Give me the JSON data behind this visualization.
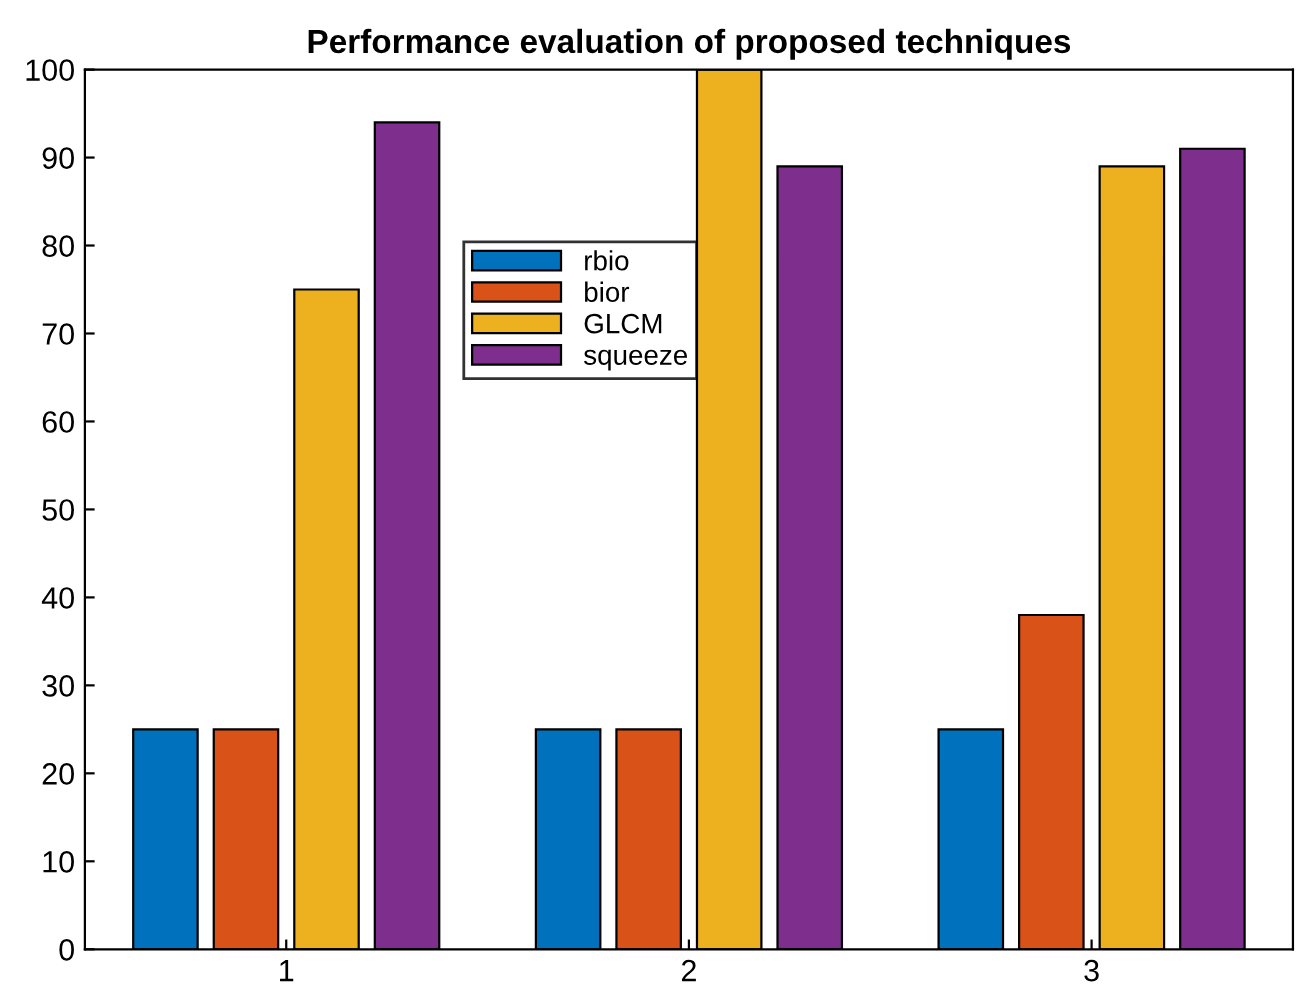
{
  "chart_data": {
    "type": "bar",
    "title": "Performance evaluation of proposed techniques",
    "categories": [
      "1",
      "2",
      "3"
    ],
    "series": [
      {
        "name": "rbio",
        "color": "#0072bd",
        "values": [
          25,
          25,
          25
        ]
      },
      {
        "name": "bior",
        "color": "#d95319",
        "values": [
          25,
          25,
          38
        ]
      },
      {
        "name": "GLCM",
        "color": "#edb120",
        "values": [
          75,
          100,
          89
        ]
      },
      {
        "name": "squeeze",
        "color": "#7e2f8e",
        "values": [
          94,
          89,
          91
        ]
      }
    ],
    "ylim": [
      0,
      100
    ],
    "yticks": [
      0,
      10,
      20,
      30,
      40,
      50,
      60,
      70,
      80,
      90,
      100
    ],
    "grid": false,
    "legend": "top"
  }
}
